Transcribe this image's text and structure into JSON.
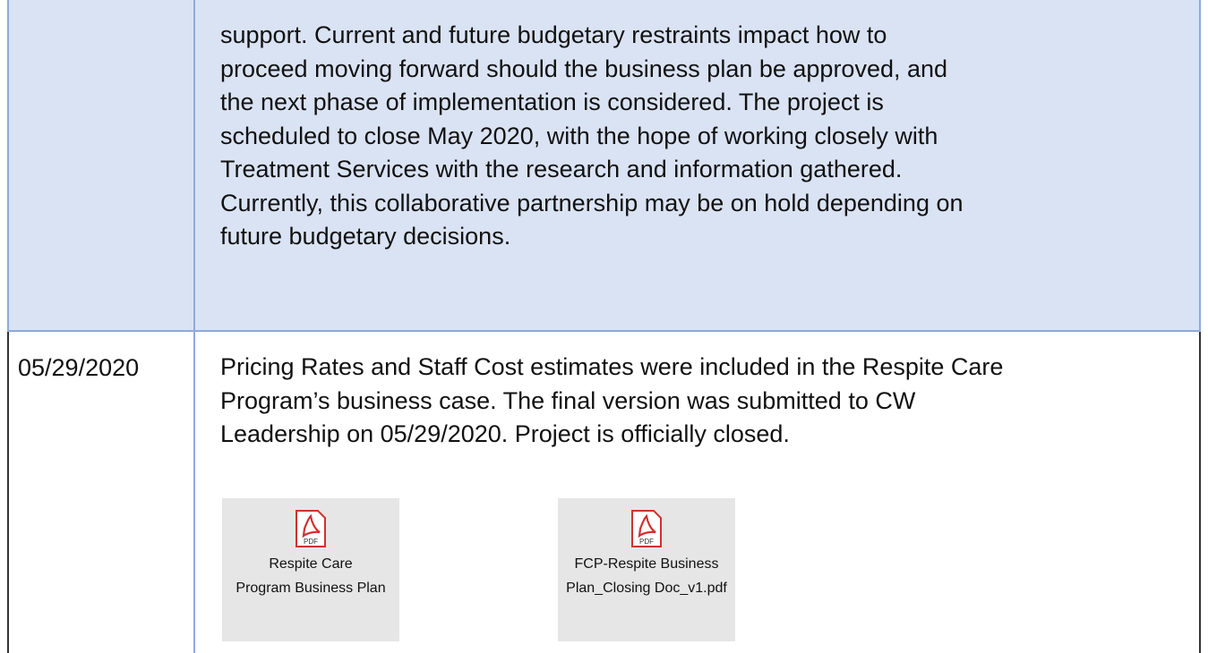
{
  "table": {
    "rows": [
      {
        "date": null,
        "lines": [
          "support. Current and future budgetary restraints impact how to",
          "proceed moving forward should the business plan be approved, and",
          "the next phase of implementation is considered. The project is",
          "scheduled to close May 2020, with the hope of working closely with",
          "Treatment Services with the research and information gathered.",
          "Currently, this collaborative partnership may be on hold depending on",
          "future budgetary decisions."
        ]
      },
      {
        "date": "05/29/2020",
        "lines": [
          "Pricing Rates and Staff Cost estimates were included in the Respite Care",
          "Program’s business case. The final version was submitted to CW",
          "Leadership on 05/29/2020. Project is officially closed."
        ],
        "attachments": [
          {
            "icon": "PDF",
            "label": [
              "Respite Care",
              "Program Business Plan"
            ]
          },
          {
            "icon": "PDF",
            "label": [
              "FCP-Respite Business",
              "Plan_Closing Doc_v1.pdf"
            ]
          }
        ]
      }
    ]
  }
}
